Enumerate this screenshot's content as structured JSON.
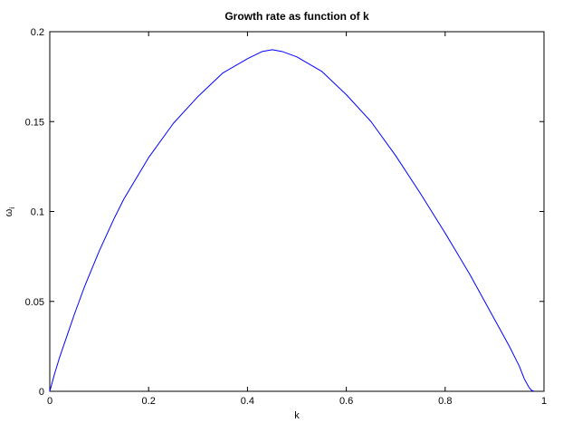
{
  "chart_data": {
    "type": "line",
    "title": "Growth rate as function of k",
    "xlabel": "k",
    "ylabel": "ω",
    "ylabel_subscript": "i",
    "xlim": [
      0,
      1
    ],
    "ylim": [
      0,
      0.2
    ],
    "grid": false,
    "xticks": [
      0,
      0.2,
      0.4,
      0.6,
      0.8,
      1
    ],
    "xtick_labels": [
      "0",
      "0.2",
      "0.4",
      "0.6",
      "0.8",
      "1"
    ],
    "yticks": [
      0,
      0.05,
      0.1,
      0.15,
      0.2
    ],
    "ytick_labels": [
      "0",
      "0.05",
      "0.1",
      "0.15",
      "0.2"
    ],
    "series": [
      {
        "color": "#0000ff",
        "x": [
          0,
          0.005,
          0.01,
          0.02,
          0.03,
          0.05,
          0.07,
          0.1,
          0.13,
          0.15,
          0.2,
          0.25,
          0.3,
          0.35,
          0.4,
          0.43,
          0.45,
          0.47,
          0.5,
          0.55,
          0.6,
          0.65,
          0.7,
          0.75,
          0.8,
          0.85,
          0.9,
          0.93,
          0.95,
          0.96,
          0.97,
          0.975,
          0.98
        ],
        "y": [
          0,
          0.005,
          0.01,
          0.019,
          0.027,
          0.043,
          0.058,
          0.078,
          0.096,
          0.107,
          0.13,
          0.149,
          0.164,
          0.177,
          0.185,
          0.189,
          0.19,
          0.189,
          0.186,
          0.178,
          0.165,
          0.15,
          0.131,
          0.11,
          0.088,
          0.065,
          0.04,
          0.025,
          0.014,
          0.007,
          0.002,
          0.0005,
          0
        ]
      }
    ]
  }
}
